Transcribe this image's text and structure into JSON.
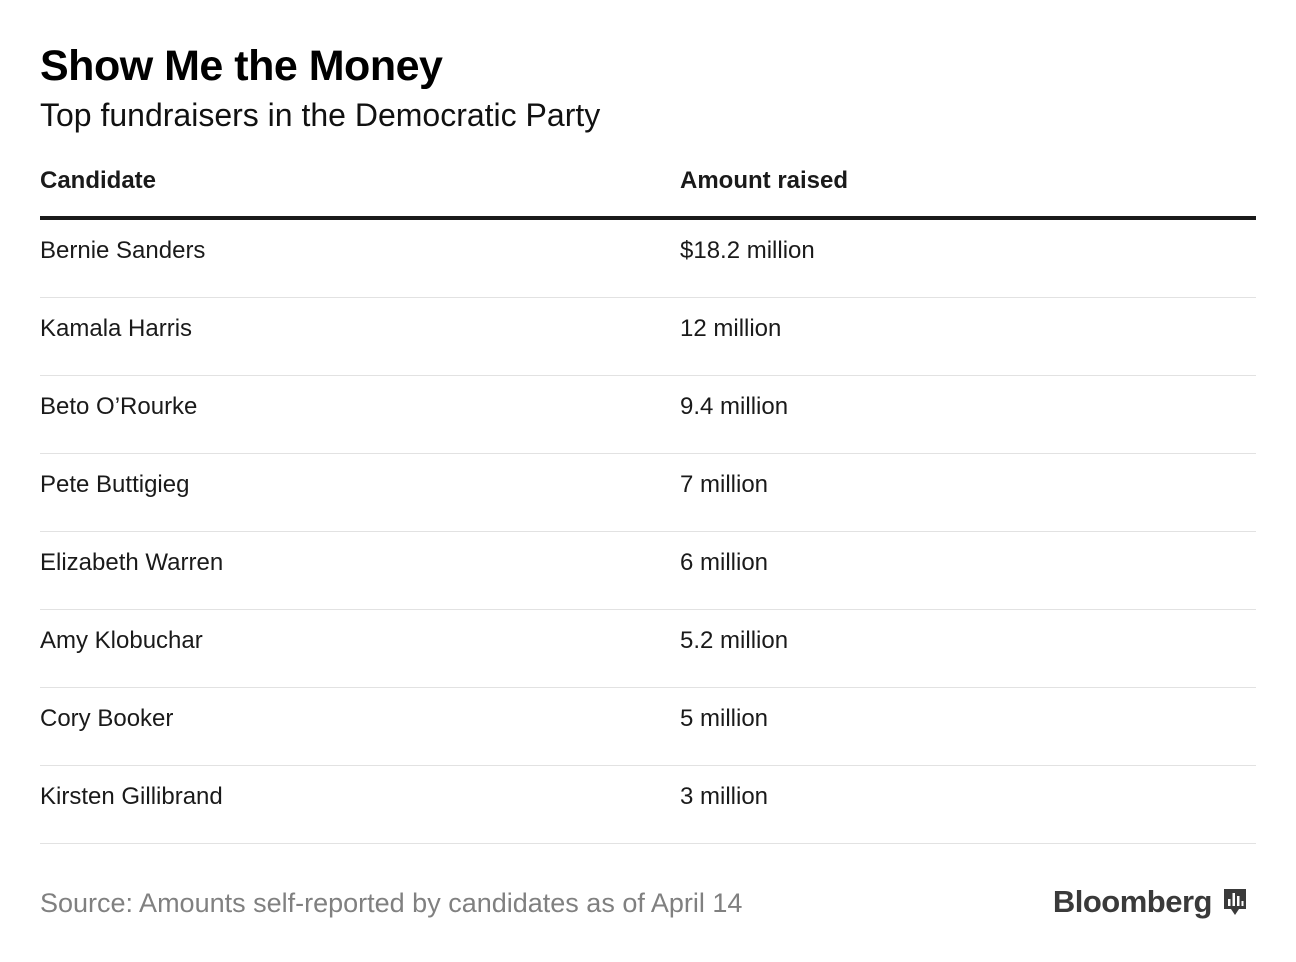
{
  "title": "Show Me the Money",
  "subtitle": "Top fundraisers in the Democratic Party",
  "chart_data": {
    "type": "table",
    "title": "Show Me the Money",
    "subtitle": "Top fundraisers in the Democratic Party",
    "columns": [
      "Candidate",
      "Amount raised"
    ],
    "rows": [
      {
        "candidate": "Bernie Sanders",
        "amount": "$18.2 million"
      },
      {
        "candidate": "Kamala Harris",
        "amount": "12 million"
      },
      {
        "candidate": "Beto O’Rourke",
        "amount": "9.4 million"
      },
      {
        "candidate": "Pete Buttigieg",
        "amount": "7 million"
      },
      {
        "candidate": "Elizabeth Warren",
        "amount": "6 million"
      },
      {
        "candidate": "Amy Klobuchar",
        "amount": "5.2 million"
      },
      {
        "candidate": "Cory Booker",
        "amount": "5 million"
      },
      {
        "candidate": "Kirsten Gillibrand",
        "amount": "3 million"
      }
    ],
    "values_millions": [
      18.2,
      12,
      9.4,
      7,
      6,
      5.2,
      5,
      3
    ]
  },
  "footer": {
    "source": "Source: Amounts self-reported by candidates as of April 14",
    "brand": "Bloomberg",
    "brand_icon": "bar-chart-icon"
  }
}
